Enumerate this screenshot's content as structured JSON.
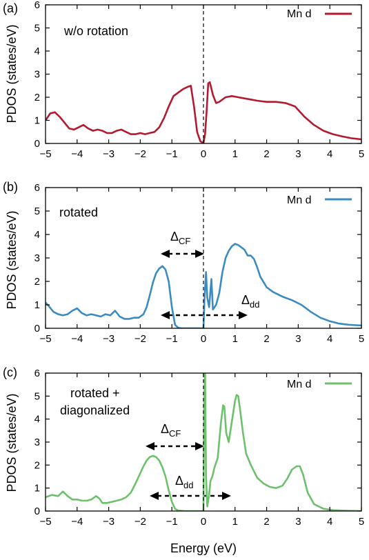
{
  "chart_data": [
    {
      "type": "line",
      "panel_label": "(a)",
      "annotations": [
        "w/o rotation"
      ],
      "xlabel": "",
      "ylabel": "PDOS (states/eV)",
      "xlim": [
        -5,
        5
      ],
      "ylim": [
        0,
        6
      ],
      "xticks": [
        -5,
        -4,
        -3,
        -2,
        -1,
        0,
        1,
        2,
        3,
        4,
        5
      ],
      "yticks": [
        0,
        1,
        2,
        3,
        4,
        5,
        6
      ],
      "vline_at": 0,
      "legend_position": "top-right",
      "series": [
        {
          "name": "Mn d",
          "color": "#b5192e",
          "x": [
            -5.0,
            -4.85,
            -4.7,
            -4.55,
            -4.4,
            -4.25,
            -4.1,
            -3.95,
            -3.8,
            -3.65,
            -3.5,
            -3.35,
            -3.2,
            -3.05,
            -2.9,
            -2.75,
            -2.6,
            -2.45,
            -2.3,
            -2.15,
            -2.0,
            -1.85,
            -1.7,
            -1.55,
            -1.4,
            -1.25,
            -1.1,
            -0.95,
            -0.8,
            -0.65,
            -0.5,
            -0.4,
            -0.3,
            -0.2,
            -0.1,
            -0.05,
            0.0,
            0.05,
            0.1,
            0.15,
            0.2,
            0.3,
            0.4,
            0.5,
            0.7,
            0.9,
            1.1,
            1.3,
            1.5,
            1.7,
            2.0,
            2.3,
            2.6,
            2.9,
            3.2,
            3.5,
            3.8,
            4.1,
            4.4,
            4.7,
            5.0
          ],
          "y": [
            1.0,
            1.3,
            1.35,
            1.15,
            0.9,
            0.65,
            0.6,
            0.7,
            0.8,
            0.65,
            0.55,
            0.6,
            0.55,
            0.45,
            0.45,
            0.55,
            0.6,
            0.5,
            0.4,
            0.4,
            0.45,
            0.4,
            0.45,
            0.5,
            0.7,
            1.1,
            1.6,
            2.05,
            2.2,
            2.35,
            2.45,
            2.5,
            1.6,
            0.5,
            0.1,
            0.05,
            0.02,
            0.4,
            1.4,
            2.6,
            2.65,
            2.1,
            1.75,
            1.8,
            2.0,
            2.05,
            2.0,
            1.95,
            1.9,
            1.85,
            1.8,
            1.8,
            1.75,
            1.6,
            1.15,
            0.8,
            0.55,
            0.4,
            0.3,
            0.22,
            0.18
          ]
        }
      ]
    },
    {
      "type": "line",
      "panel_label": "(b)",
      "annotations": [
        "rotated",
        "ΔCF",
        "Δdd"
      ],
      "xlabel": "",
      "ylabel": "PDOS (states/eV)",
      "xlim": [
        -5,
        5
      ],
      "ylim": [
        0,
        6
      ],
      "xticks": [
        -5,
        -4,
        -3,
        -2,
        -1,
        0,
        1,
        2,
        3,
        4,
        5
      ],
      "yticks": [
        0,
        1,
        2,
        3,
        4,
        5,
        6
      ],
      "vline_at": 0,
      "legend_position": "top-right",
      "series": [
        {
          "name": "Mn d",
          "color": "#3a8bc2",
          "x": [
            -5.0,
            -4.9,
            -4.75,
            -4.6,
            -4.45,
            -4.3,
            -4.15,
            -4.0,
            -3.85,
            -3.7,
            -3.55,
            -3.4,
            -3.25,
            -3.1,
            -2.95,
            -2.8,
            -2.65,
            -2.5,
            -2.35,
            -2.2,
            -2.05,
            -1.9,
            -1.8,
            -1.7,
            -1.6,
            -1.5,
            -1.4,
            -1.3,
            -1.2,
            -1.1,
            -1.0,
            -0.9,
            -0.8,
            -0.7,
            -0.5,
            -0.3,
            -0.1,
            0.0,
            0.03,
            0.08,
            0.12,
            0.18,
            0.25,
            0.3,
            0.4,
            0.5,
            0.6,
            0.7,
            0.8,
            0.9,
            1.0,
            1.1,
            1.2,
            1.3,
            1.4,
            1.5,
            1.6,
            1.7,
            1.8,
            2.0,
            2.2,
            2.5,
            2.8,
            3.1,
            3.4,
            3.7,
            4.0,
            4.3,
            4.6,
            5.0
          ],
          "y": [
            1.1,
            0.95,
            0.7,
            0.6,
            0.55,
            0.6,
            0.75,
            0.85,
            0.65,
            0.55,
            0.6,
            0.55,
            0.5,
            0.6,
            0.55,
            0.75,
            0.5,
            0.4,
            0.4,
            0.45,
            0.45,
            0.6,
            0.9,
            1.4,
            1.95,
            2.35,
            2.55,
            2.65,
            2.5,
            2.0,
            0.9,
            0.15,
            0.02,
            0.0,
            0.0,
            0.0,
            0.0,
            0.0,
            1.2,
            2.4,
            1.3,
            0.9,
            2.1,
            0.8,
            1.0,
            1.5,
            2.4,
            3.0,
            3.3,
            3.5,
            3.6,
            3.55,
            3.45,
            3.35,
            3.1,
            3.1,
            2.95,
            2.6,
            2.2,
            1.75,
            1.55,
            1.35,
            1.2,
            1.0,
            0.7,
            0.45,
            0.3,
            0.2,
            0.15,
            0.12
          ]
        }
      ]
    },
    {
      "type": "line",
      "panel_label": "(c)",
      "annotations": [
        "rotated +",
        "diagonalized",
        "ΔCF",
        "Δdd"
      ],
      "xlabel": "Energy (eV)",
      "ylabel": "PDOS (states/eV)",
      "xlim": [
        -5,
        5
      ],
      "ylim": [
        0,
        6
      ],
      "xticks": [
        -5,
        -4,
        -3,
        -2,
        -1,
        0,
        1,
        2,
        3,
        4,
        5
      ],
      "yticks": [
        0,
        1,
        2,
        3,
        4,
        5,
        6
      ],
      "vline_at": 0,
      "legend_position": "top-right",
      "series": [
        {
          "name": "Mn d",
          "color": "#6cc16b",
          "x": [
            -5.0,
            -4.8,
            -4.6,
            -4.45,
            -4.3,
            -4.15,
            -4.0,
            -3.85,
            -3.7,
            -3.55,
            -3.4,
            -3.3,
            -3.2,
            -3.05,
            -2.9,
            -2.75,
            -2.6,
            -2.45,
            -2.3,
            -2.15,
            -2.0,
            -1.9,
            -1.8,
            -1.7,
            -1.6,
            -1.5,
            -1.4,
            -1.3,
            -1.2,
            -1.1,
            -1.0,
            -0.9,
            -0.8,
            -0.6,
            -0.4,
            -0.2,
            -0.05,
            0.0,
            0.02,
            0.05,
            0.08,
            0.12,
            0.18,
            0.22,
            0.28,
            0.35,
            0.45,
            0.55,
            0.62,
            0.66,
            0.72,
            0.8,
            0.9,
            1.0,
            1.05,
            1.1,
            1.15,
            1.25,
            1.35,
            1.5,
            1.7,
            1.9,
            2.1,
            2.3,
            2.5,
            2.65,
            2.8,
            2.95,
            3.05,
            3.15,
            3.3,
            3.5,
            3.8,
            4.1,
            4.4,
            4.7,
            5.0
          ],
          "y": [
            0.6,
            0.7,
            0.65,
            0.85,
            0.65,
            0.5,
            0.5,
            0.45,
            0.45,
            0.5,
            0.65,
            0.55,
            0.35,
            0.35,
            0.4,
            0.45,
            0.5,
            0.6,
            0.8,
            1.2,
            1.65,
            1.95,
            2.2,
            2.35,
            2.4,
            2.35,
            2.2,
            1.9,
            1.5,
            0.9,
            0.4,
            0.1,
            0.02,
            0.0,
            0.0,
            0.0,
            0.0,
            0.0,
            4.5,
            6.2,
            1.5,
            0.2,
            0.7,
            1.3,
            1.5,
            1.9,
            2.3,
            3.8,
            4.6,
            4.55,
            3.4,
            3.0,
            3.9,
            4.8,
            5.05,
            5.0,
            4.5,
            3.4,
            2.5,
            2.0,
            1.45,
            1.2,
            1.05,
            1.0,
            1.1,
            1.4,
            1.8,
            1.95,
            1.95,
            1.6,
            0.8,
            0.3,
            0.1,
            0.04,
            0.02,
            0.01,
            0.0
          ]
        }
      ]
    }
  ]
}
